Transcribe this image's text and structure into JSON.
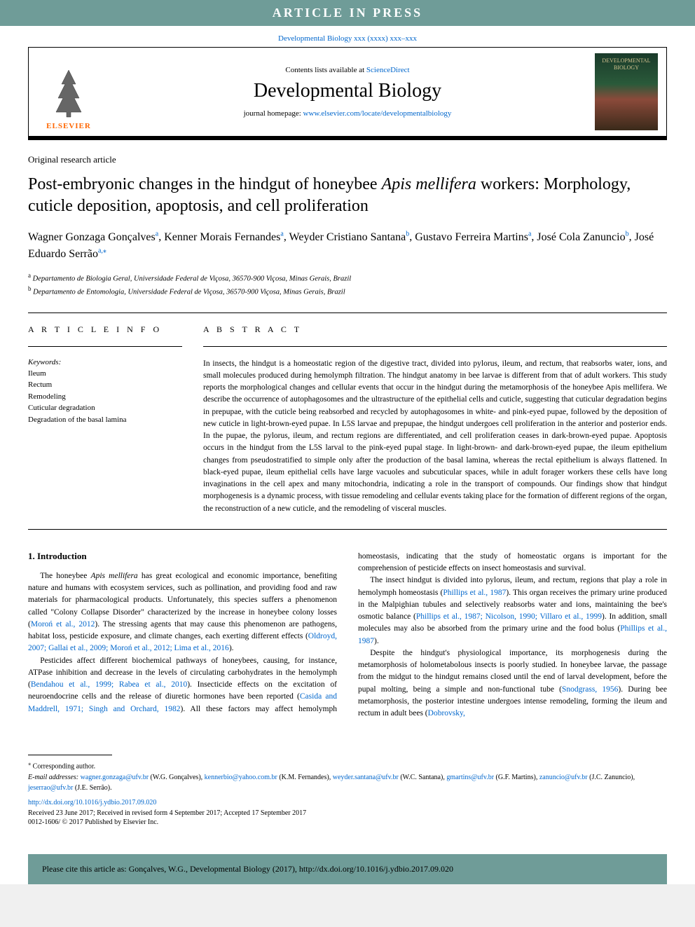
{
  "banner": "ARTICLE IN PRESS",
  "journal_ref_text": "Developmental Biology xxx (xxxx) xxx–xxx",
  "header": {
    "contents_available": "Contents lists available at ",
    "sciencedirect": "ScienceDirect",
    "journal_name": "Developmental Biology",
    "homepage_label": "journal homepage: ",
    "homepage_url": "www.elsevier.com/locate/developmentalbiology",
    "publisher_logo": "ELSEVIER",
    "cover_text_1": "DEVELOPMENTAL",
    "cover_text_2": "BIOLOGY"
  },
  "article_type": "Original research article",
  "title_part1": "Post-embryonic changes in the hindgut of honeybee ",
  "title_italic": "Apis mellifera",
  "title_part2": " workers: Morphology, cuticle deposition, apoptosis, and cell proliferation",
  "authors": [
    {
      "name": "Wagner Gonzaga Gonçalves",
      "aff": "a"
    },
    {
      "name": "Kenner Morais Fernandes",
      "aff": "a"
    },
    {
      "name": "Weyder Cristiano Santana",
      "aff": "b"
    },
    {
      "name": "Gustavo Ferreira Martins",
      "aff": "a"
    },
    {
      "name": "José Cola Zanuncio",
      "aff": "b"
    },
    {
      "name": "José Eduardo Serrão",
      "aff": "a,⁎"
    }
  ],
  "affiliations": [
    {
      "sup": "a",
      "text": "Departamento de Biologia Geral, Universidade Federal de Viçosa, 36570-900 Viçosa, Minas Gerais, Brazil"
    },
    {
      "sup": "b",
      "text": "Departamento de Entomologia, Universidade Federal de Viçosa, 36570-900 Viçosa, Minas Gerais, Brazil"
    }
  ],
  "info_heading": "A R T I C L E  I N F O",
  "keywords_label": "Keywords:",
  "keywords": [
    "Ileum",
    "Rectum",
    "Remodeling",
    "Cuticular degradation",
    "Degradation of the basal lamina"
  ],
  "abstract_heading": "A B S T R A C T",
  "abstract": "In insects, the hindgut is a homeostatic region of the digestive tract, divided into pylorus, ileum, and rectum, that reabsorbs water, ions, and small molecules produced during hemolymph filtration. The hindgut anatomy in bee larvae is different from that of adult workers. This study reports the morphological changes and cellular events that occur in the hindgut during the metamorphosis of the honeybee Apis mellifera. We describe the occurrence of autophagosomes and the ultrastructure of the epithelial cells and cuticle, suggesting that cuticular degradation begins in prepupae, with the cuticle being reabsorbed and recycled by autophagosomes in white- and pink-eyed pupae, followed by the deposition of new cuticle in light-brown-eyed pupae. In L5S larvae and prepupae, the hindgut undergoes cell proliferation in the anterior and posterior ends. In the pupae, the pylorus, ileum, and rectum regions are differentiated, and cell proliferation ceases in dark-brown-eyed pupae. Apoptosis occurs in the hindgut from the L5S larval to the pink-eyed pupal stage. In light-brown- and dark-brown-eyed pupae, the ileum epithelium changes from pseudostratified to simple only after the production of the basal lamina, whereas the rectal epithelium is always flattened. In black-eyed pupae, ileum epithelial cells have large vacuoles and subcuticular spaces, while in adult forager workers these cells have long invaginations in the cell apex and many mitochondria, indicating a role in the transport of compounds. Our findings show that hindgut morphogenesis is a dynamic process, with tissue remodeling and cellular events taking place for the formation of different regions of the organ, the reconstruction of a new cuticle, and the remodeling of visceral muscles.",
  "intro_heading": "1. Introduction",
  "para1_a": "The honeybee ",
  "para1_italic": "Apis mellifera",
  "para1_b": " has great ecological and economic importance, benefiting nature and humans with ecosystem services, such as pollination, and providing food and raw materials for pharmacological products. Unfortunately, this species suffers a phenomenon called \"Colony Collapse Disorder\" characterized by the increase in honeybee colony losses (",
  "para1_ref1": "Moroń et al., 2012",
  "para1_c": "). The stressing agents that may cause this phenomenon are pathogens, habitat loss, pesticide exposure, and climate changes, each exerting different effects (",
  "para1_ref2": "Oldroyd, 2007; Gallai et al., 2009; Moroń et al., 2012; Lima et al., 2016",
  "para1_d": ").",
  "para2_a": "Pesticides affect different biochemical pathways of honeybees, causing, for instance, ATPase inhibition and decrease in the levels of circulating carbohydrates in the hemolymph (",
  "para2_ref1": "Bendahou et al., 1999; Rabea et al., 2010",
  "para2_b": "). Insecticide effects on the excitation of neuroendocrine cells and the release of diuretic hormones have been reported (",
  "para2_ref2": "Casida and Maddrell, 1971; Singh and Orchard, 1982",
  "para2_c": "). All these factors may affect hemolymph homeostasis, indicating that the study of homeostatic organs is important for the comprehension of pesticide effects on insect homeostasis and survival.",
  "para3_a": "The insect hindgut is divided into pylorus, ileum, and rectum, regions that play a role in hemolymph homeostasis (",
  "para3_ref1": "Phillips et al., 1987",
  "para3_b": "). This organ receives the primary urine produced in the Malpighian tubules and selectively reabsorbs water and ions, maintaining the bee's osmotic balance (",
  "para3_ref2": "Phillips et al., 1987; Nicolson, 1990; Villaro et al., 1999",
  "para3_c": "). In addition, small molecules may also be absorbed from the primary urine and the food bolus (",
  "para3_ref3": "Phillips et al., 1987",
  "para3_d": ").",
  "para4_a": "Despite the hindgut's physiological importance, its morphogenesis during the metamorphosis of holometabolous insects is poorly studied. In honeybee larvae, the passage from the midgut to the hindgut remains closed until the end of larval development, before the pupal molting, being a simple and non-functional tube (",
  "para4_ref1": "Snodgrass, 1956",
  "para4_b": "). During bee metamorphosis, the posterior intestine undergoes intense remodeling, forming the ileum and rectum in adult bees (",
  "para4_ref2": "Dobrovsky,",
  "corresponding_marker": "⁎",
  "corresponding_label": " Corresponding author.",
  "email_label": "E-mail addresses: ",
  "emails": [
    {
      "email": "wagner.gonzaga@ufv.br",
      "name": "(W.G. Gonçalves)"
    },
    {
      "email": "kennerbio@yahoo.com.br",
      "name": "(K.M. Fernandes)"
    },
    {
      "email": "weyder.santana@ufv.br",
      "name": "(W.C. Santana)"
    },
    {
      "email": "gmartins@ufv.br",
      "name": "(G.F. Martins)"
    },
    {
      "email": "zanuncio@ufv.br",
      "name": "(J.C. Zanuncio)"
    },
    {
      "email": "jeserrao@ufv.br",
      "name": "(J.E. Serrão)"
    }
  ],
  "doi": "http://dx.doi.org/10.1016/j.ydbio.2017.09.020",
  "received": "Received 23 June 2017; Received in revised form 4 September 2017; Accepted 17 September 2017",
  "copyright": "0012-1606/ © 2017 Published by Elsevier Inc.",
  "cite_box": "Please cite this article as: Gonçalves, W.G., Developmental Biology (2017), http://dx.doi.org/10.1016/j.ydbio.2017.09.020"
}
